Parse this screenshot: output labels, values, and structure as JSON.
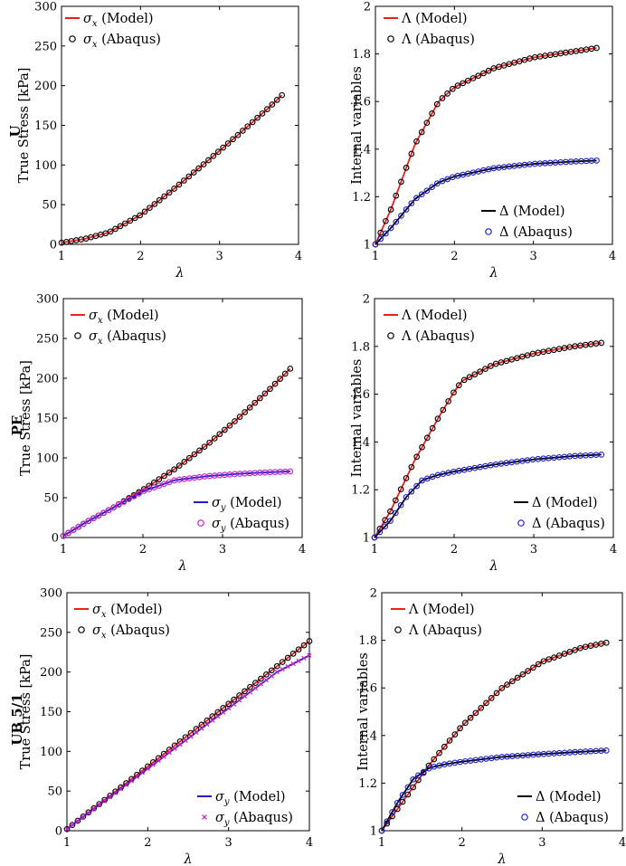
{
  "chart_data": [
    {
      "id": "U-stress",
      "type": "line",
      "row_label": "U",
      "ylabel": "True Stress [kPa]",
      "xlabel": "λ",
      "xlim": [
        1,
        4
      ],
      "ylim": [
        0,
        300
      ],
      "xticks": [
        "1",
        "2",
        "3",
        "4"
      ],
      "yticks": [
        "0",
        "50",
        "100",
        "150",
        "200",
        "250",
        "300"
      ],
      "legend_position": "top-left",
      "series": [
        {
          "name": "σx (Model)",
          "style": "line",
          "color": "#e8201f",
          "x": [
            1.0,
            1.3,
            1.6,
            2.0,
            2.4,
            2.8,
            3.2,
            3.6,
            3.79
          ],
          "y": [
            2,
            7,
            15,
            37,
            68,
            101,
            135,
            170,
            188
          ]
        },
        {
          "name": "σx (Abaqus)",
          "style": "circle",
          "color": "#000000",
          "x": [
            1.0,
            1.3,
            1.6,
            2.0,
            2.4,
            2.8,
            3.2,
            3.6,
            3.79
          ],
          "y": [
            2,
            7,
            15,
            37,
            68,
            101,
            135,
            170,
            188
          ]
        }
      ]
    },
    {
      "id": "U-internal",
      "type": "line",
      "ylabel": "Internal variables",
      "xlabel": "λ",
      "xlim": [
        1,
        4
      ],
      "ylim": [
        1,
        2
      ],
      "xticks": [
        "1",
        "2",
        "3",
        "4"
      ],
      "yticks": [
        "1",
        "1.2",
        "1.4",
        "1.6",
        "1.8",
        "2"
      ],
      "legend_position": "top-left / bottom-right",
      "series": [
        {
          "name": "Λ (Model)",
          "style": "line",
          "color": "#e8201f",
          "x": [
            1.0,
            1.2,
            1.5,
            1.8,
            2.0,
            2.5,
            3.0,
            3.5,
            3.8
          ],
          "y": [
            1.0,
            1.15,
            1.42,
            1.6,
            1.66,
            1.74,
            1.785,
            1.81,
            1.825
          ]
        },
        {
          "name": "Λ (Abaqus)",
          "style": "circle",
          "color": "#000000",
          "x": [
            1.0,
            1.2,
            1.5,
            1.8,
            2.0,
            2.5,
            3.0,
            3.5,
            3.8
          ],
          "y": [
            1.0,
            1.15,
            1.42,
            1.6,
            1.66,
            1.74,
            1.785,
            1.81,
            1.825
          ]
        },
        {
          "name": "Δ (Model)",
          "style": "line",
          "color": "#000000",
          "x": [
            1.0,
            1.2,
            1.5,
            1.8,
            2.0,
            2.5,
            3.0,
            3.5,
            3.8
          ],
          "y": [
            1.0,
            1.07,
            1.19,
            1.26,
            1.285,
            1.32,
            1.338,
            1.348,
            1.352
          ]
        },
        {
          "name": "Δ (Abaqus)",
          "style": "circle",
          "color": "#1f1fcf",
          "x": [
            1.0,
            1.2,
            1.5,
            1.8,
            2.0,
            2.5,
            3.0,
            3.5,
            3.8
          ],
          "y": [
            1.0,
            1.07,
            1.19,
            1.26,
            1.285,
            1.32,
            1.338,
            1.348,
            1.352
          ]
        }
      ]
    },
    {
      "id": "PE-stress",
      "type": "line",
      "row_label": "PE",
      "ylabel": "True Stress [kPa]",
      "xlabel": "λ",
      "xlim": [
        1,
        4
      ],
      "ylim": [
        0,
        300
      ],
      "xticks": [
        "1",
        "2",
        "3",
        "4"
      ],
      "yticks": [
        "0",
        "50",
        "100",
        "150",
        "200",
        "250",
        "300"
      ],
      "legend_position": "top-left / bottom-right",
      "series": [
        {
          "name": "σx (Model)",
          "style": "line",
          "color": "#e8201f",
          "x": [
            1.0,
            1.3,
            1.6,
            2.0,
            2.4,
            2.8,
            3.2,
            3.6,
            3.85
          ],
          "y": [
            2,
            20,
            36,
            60,
            86,
            116,
            150,
            187,
            212
          ]
        },
        {
          "name": "σx (Abaqus)",
          "style": "circle",
          "color": "#000000",
          "x": [
            1.0,
            1.3,
            1.6,
            2.0,
            2.4,
            2.8,
            3.2,
            3.6,
            3.85
          ],
          "y": [
            2,
            20,
            36,
            60,
            86,
            116,
            150,
            187,
            212
          ]
        },
        {
          "name": "σy (Model)",
          "style": "line",
          "color": "#1f1fcf",
          "x": [
            1.0,
            1.3,
            1.6,
            2.0,
            2.4,
            2.8,
            3.2,
            3.6,
            3.85
          ],
          "y": [
            2,
            20,
            36,
            58,
            72,
            77,
            80,
            82,
            83
          ]
        },
        {
          "name": "σy (Abaqus)",
          "style": "circle",
          "color": "#c61cc6",
          "x": [
            1.0,
            1.3,
            1.6,
            2.0,
            2.4,
            2.8,
            3.2,
            3.6,
            3.85
          ],
          "y": [
            2,
            20,
            36,
            58,
            72,
            77,
            80,
            82,
            83
          ]
        }
      ]
    },
    {
      "id": "PE-internal",
      "type": "line",
      "ylabel": "Internal variables",
      "xlabel": "λ",
      "xlim": [
        1,
        4
      ],
      "ylim": [
        1,
        2
      ],
      "xticks": [
        "1",
        "2",
        "3",
        "4"
      ],
      "yticks": [
        "1",
        "1.2",
        "1.4",
        "1.6",
        "1.8",
        "2"
      ],
      "legend_position": "top-left / bottom-right",
      "series": [
        {
          "name": "Λ (Model)",
          "style": "line",
          "color": "#e8201f",
          "x": [
            1.0,
            1.2,
            1.5,
            1.8,
            2.0,
            2.1,
            2.5,
            3.0,
            3.5,
            3.85
          ],
          "y": [
            1.0,
            1.11,
            1.32,
            1.5,
            1.61,
            1.655,
            1.725,
            1.77,
            1.8,
            1.815
          ]
        },
        {
          "name": "Λ (Abaqus)",
          "style": "circle",
          "color": "#000000",
          "x": [
            1.0,
            1.2,
            1.5,
            1.8,
            2.0,
            2.1,
            2.5,
            3.0,
            3.5,
            3.85
          ],
          "y": [
            1.0,
            1.11,
            1.32,
            1.5,
            1.61,
            1.655,
            1.725,
            1.77,
            1.8,
            1.815
          ]
        },
        {
          "name": "Δ (Model)",
          "style": "line",
          "color": "#000000",
          "x": [
            1.0,
            1.2,
            1.4,
            1.6,
            1.8,
            2.0,
            2.5,
            3.0,
            3.5,
            3.85
          ],
          "y": [
            1.0,
            1.07,
            1.17,
            1.24,
            1.262,
            1.276,
            1.305,
            1.327,
            1.341,
            1.347
          ]
        },
        {
          "name": "Δ (Abaqus)",
          "style": "circle",
          "color": "#1f1fcf",
          "x": [
            1.0,
            1.2,
            1.4,
            1.6,
            1.8,
            2.0,
            2.5,
            3.0,
            3.5,
            3.85
          ],
          "y": [
            1.0,
            1.07,
            1.17,
            1.24,
            1.262,
            1.276,
            1.305,
            1.327,
            1.341,
            1.347
          ]
        }
      ]
    },
    {
      "id": "UB-stress",
      "type": "line",
      "row_label": "UB 5/1",
      "ylabel": "True Stress [kPa]",
      "xlabel": "λ",
      "xlim": [
        1,
        4
      ],
      "ylim": [
        0,
        300
      ],
      "xticks": [
        "1",
        "2",
        "3",
        "4"
      ],
      "yticks": [
        "0",
        "50",
        "100",
        "150",
        "200",
        "250",
        "300"
      ],
      "legend_position": "top-left / bottom-right",
      "series": [
        {
          "name": "σx (Model)",
          "style": "line",
          "color": "#e8201f",
          "x": [
            1.0,
            4.0
          ],
          "y": [
            2,
            239
          ]
        },
        {
          "name": "σx (Abaqus)",
          "style": "circle",
          "color": "#000000",
          "x": [
            1.0,
            4.0
          ],
          "y": [
            2,
            239
          ]
        },
        {
          "name": "σy (Model)",
          "style": "line",
          "color": "#1f1fcf",
          "x": [
            1.0,
            3.6,
            4.0
          ],
          "y": [
            2,
            200,
            221
          ]
        },
        {
          "name": "σy (Abaqus)",
          "style": "cross",
          "color": "#c61cc6",
          "x": [
            1.0,
            3.6,
            4.0
          ],
          "y": [
            2,
            200,
            221
          ]
        }
      ]
    },
    {
      "id": "UB-internal",
      "type": "line",
      "ylabel": "Internal variables",
      "xlabel": "λ",
      "xlim": [
        1,
        4
      ],
      "ylim": [
        1,
        2
      ],
      "xticks": [
        "1",
        "2",
        "3",
        "4"
      ],
      "yticks": [
        "1",
        "1.2",
        "1.4",
        "1.6",
        "1.8",
        "2"
      ],
      "legend_position": "top-left / bottom-right",
      "series": [
        {
          "name": "Λ (Model)",
          "style": "line",
          "color": "#e8201f",
          "x": [
            1.0,
            1.3,
            1.6,
            2.0,
            2.5,
            3.0,
            3.5,
            3.8
          ],
          "y": [
            1.0,
            1.14,
            1.28,
            1.44,
            1.6,
            1.71,
            1.77,
            1.79
          ]
        },
        {
          "name": "Λ (Abaqus)",
          "style": "circle",
          "color": "#000000",
          "x": [
            1.0,
            1.3,
            1.6,
            2.0,
            2.5,
            3.0,
            3.5,
            3.8
          ],
          "y": [
            1.0,
            1.14,
            1.28,
            1.44,
            1.6,
            1.71,
            1.77,
            1.79
          ]
        },
        {
          "name": "Δ (Model)",
          "style": "line",
          "color": "#000000",
          "x": [
            1.0,
            1.2,
            1.4,
            1.6,
            1.8,
            2.0,
            2.5,
            3.0,
            3.5,
            3.8
          ],
          "y": [
            1.0,
            1.12,
            1.22,
            1.265,
            1.28,
            1.29,
            1.31,
            1.322,
            1.332,
            1.337
          ]
        },
        {
          "name": "Δ (Abaqus)",
          "style": "circle",
          "color": "#1f1fcf",
          "x": [
            1.0,
            1.2,
            1.4,
            1.6,
            1.8,
            2.0,
            2.5,
            3.0,
            3.5,
            3.8
          ],
          "y": [
            1.0,
            1.12,
            1.22,
            1.265,
            1.28,
            1.29,
            1.31,
            1.322,
            1.332,
            1.337
          ]
        }
      ]
    }
  ]
}
